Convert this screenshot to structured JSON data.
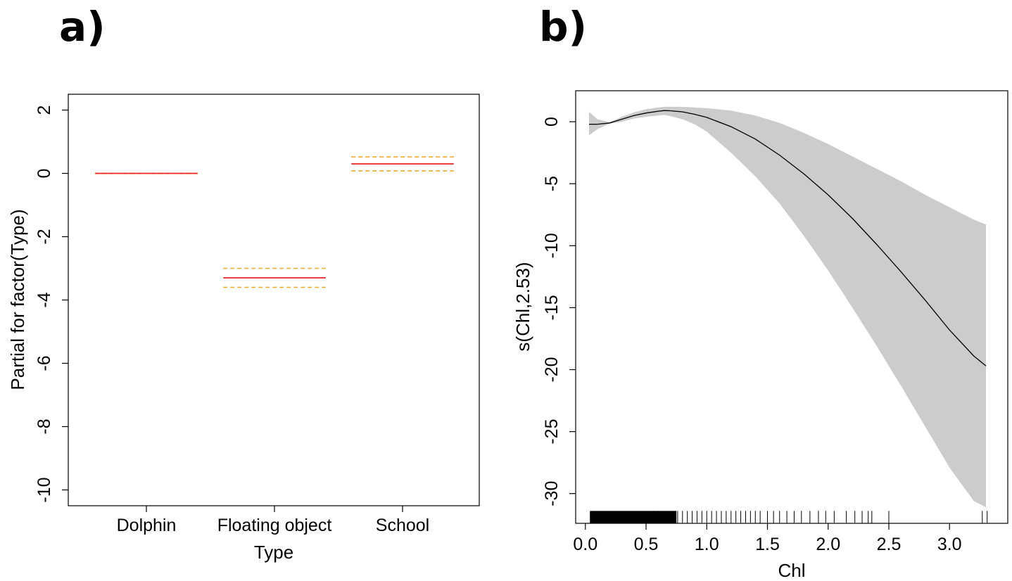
{
  "panel_labels": {
    "a": "a)",
    "b": "b)"
  },
  "chart_data": [
    {
      "type": "line",
      "subtype": "partial-effect-factor",
      "panel": "a)",
      "xlabel": "Type",
      "ylabel": "Partial for factor(Type)",
      "categories": [
        "Dolphin",
        "Floating object",
        "School"
      ],
      "estimate": [
        0.0,
        -3.3,
        0.3
      ],
      "lower": [
        0.0,
        -3.6,
        0.08
      ],
      "upper": [
        0.0,
        -3.0,
        0.52
      ],
      "ylim": [
        -10.5,
        2.5
      ],
      "yticks": [
        2,
        0,
        -2,
        -4,
        -6,
        -8,
        -10
      ],
      "colors": {
        "estimate": "#e8251f",
        "band": "#f0a92e"
      },
      "grid": false,
      "legend": "none"
    },
    {
      "type": "line",
      "subtype": "smooth-term-with-ci",
      "panel": "b)",
      "xlabel": "Chl",
      "ylabel": "s(Chl,2.53)",
      "xlim": [
        -0.08,
        3.48
      ],
      "ylim": [
        -32.4,
        2.5
      ],
      "xticks": [
        0.0,
        0.5,
        1.0,
        1.5,
        2.0,
        2.5,
        3.0
      ],
      "xtick_labels": [
        "0.0",
        "0.5",
        "1.0",
        "1.5",
        "2.0",
        "2.5",
        "3.0"
      ],
      "yticks": [
        0,
        -5,
        -10,
        -15,
        -20,
        -25,
        -30
      ],
      "x": [
        0.03,
        0.1,
        0.2,
        0.3,
        0.4,
        0.5,
        0.6,
        0.65,
        0.7,
        0.8,
        0.9,
        1.0,
        1.2,
        1.4,
        1.6,
        1.8,
        2.0,
        2.2,
        2.4,
        2.6,
        2.8,
        3.0,
        3.2,
        3.3
      ],
      "fit": [
        -0.2,
        -0.2,
        -0.1,
        0.2,
        0.5,
        0.7,
        0.85,
        0.9,
        0.88,
        0.8,
        0.6,
        0.35,
        -0.4,
        -1.4,
        -2.7,
        -4.2,
        -5.9,
        -7.8,
        -9.9,
        -12.1,
        -14.4,
        -16.8,
        -18.9,
        -19.7
      ],
      "upper": [
        0.8,
        0.2,
        -0.05,
        0.4,
        0.75,
        1.0,
        1.15,
        1.2,
        1.2,
        1.2,
        1.15,
        1.1,
        0.9,
        0.5,
        -0.1,
        -0.9,
        -1.8,
        -2.8,
        -3.8,
        -4.8,
        -5.9,
        -6.9,
        -7.9,
        -8.3
      ],
      "lower": [
        -1.1,
        -0.6,
        -0.15,
        0.0,
        0.25,
        0.4,
        0.5,
        0.55,
        0.45,
        0.2,
        -0.2,
        -0.8,
        -2.5,
        -4.4,
        -6.6,
        -9.2,
        -12.0,
        -15.0,
        -18.1,
        -21.3,
        -24.6,
        -27.9,
        -30.6,
        -31.1
      ],
      "rug": [
        0.04,
        0.08,
        0.12,
        0.16,
        0.2,
        0.24,
        0.28,
        0.32,
        0.36,
        0.4,
        0.44,
        0.48,
        0.52,
        0.56,
        0.6,
        0.64,
        0.68,
        0.72,
        0.76,
        0.8,
        0.84,
        0.88,
        0.92,
        0.96,
        1.0,
        1.04,
        1.08,
        1.12,
        1.16,
        1.2,
        1.24,
        1.28,
        1.32,
        1.36,
        1.4,
        1.44,
        1.5,
        1.55,
        1.6,
        1.66,
        1.72,
        1.78,
        1.85,
        1.92,
        1.98,
        2.05,
        2.15,
        2.22,
        2.28,
        2.33,
        2.36,
        2.5,
        3.27,
        3.31
      ],
      "colors": {
        "fit": "#000000",
        "band": "#cccccc",
        "rug": "#000000"
      },
      "grid": false,
      "legend": "none"
    }
  ]
}
